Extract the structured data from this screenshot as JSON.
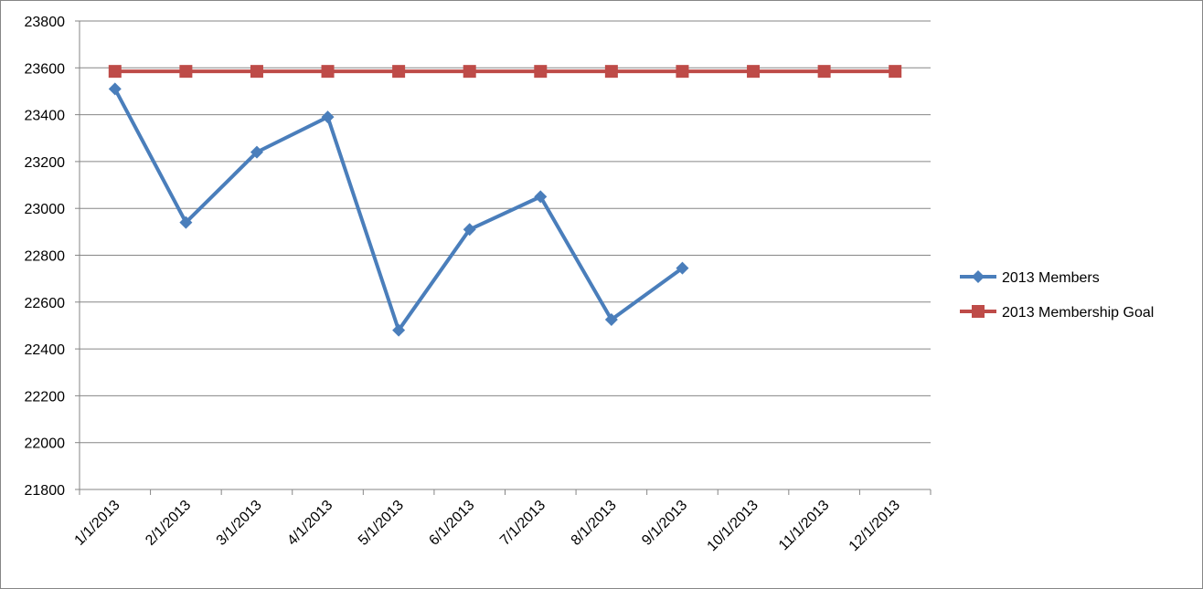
{
  "chart_data": {
    "type": "line",
    "categories": [
      "1/1/2013",
      "2/1/2013",
      "3/1/2013",
      "4/1/2013",
      "5/1/2013",
      "6/1/2013",
      "7/1/2013",
      "8/1/2013",
      "9/1/2013",
      "10/1/2013",
      "11/1/2013",
      "12/1/2013"
    ],
    "series": [
      {
        "name": "2013 Members",
        "color": "#4a7ebb",
        "marker": "diamond",
        "values": [
          23510,
          22940,
          23240,
          23390,
          22480,
          22910,
          23050,
          22525,
          22745,
          null,
          null,
          null
        ]
      },
      {
        "name": "2013 Membership Goal",
        "color": "#be4b48",
        "marker": "square",
        "values": [
          23585,
          23585,
          23585,
          23585,
          23585,
          23585,
          23585,
          23585,
          23585,
          23585,
          23585,
          23585
        ]
      }
    ],
    "ylim": [
      21800,
      23800
    ],
    "yticks": [
      21800,
      22000,
      22200,
      22400,
      22600,
      22800,
      23000,
      23200,
      23400,
      23600,
      23800
    ],
    "grid": true,
    "legend": "right"
  }
}
